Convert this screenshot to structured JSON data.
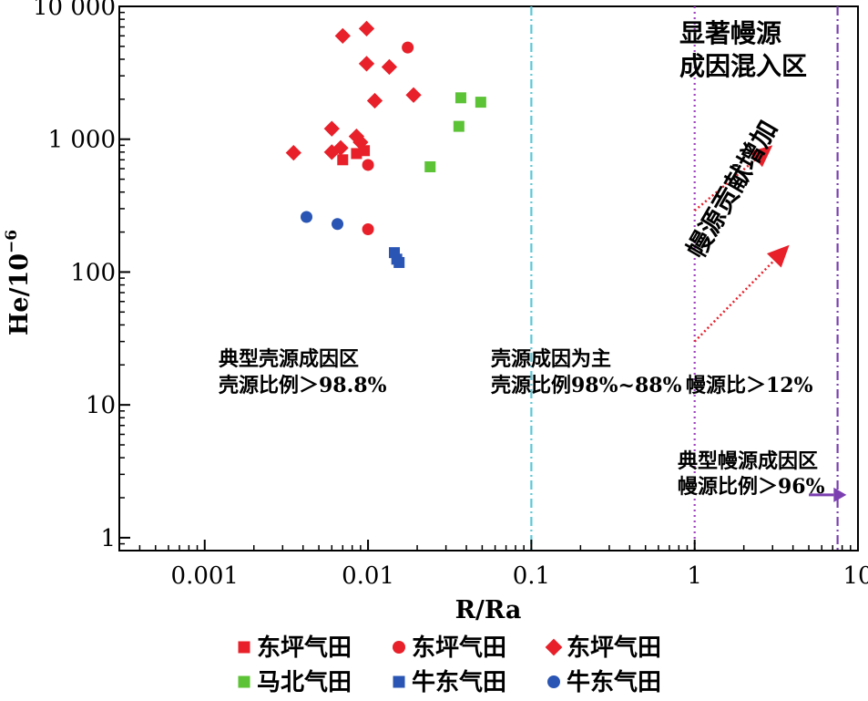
{
  "chart_data": {
    "type": "scatter",
    "xlabel": "R/Ra",
    "ylabel_base": "He/10",
    "ylabel_exp": "−6",
    "xscale": "log",
    "yscale": "log",
    "xlim": [
      0.0003,
      10
    ],
    "ylim": [
      0.8,
      10000
    ],
    "x_ticks": [
      {
        "value": 0.001,
        "label": "0.001"
      },
      {
        "value": 0.01,
        "label": "0.01"
      },
      {
        "value": 0.1,
        "label": "0.1"
      },
      {
        "value": 1,
        "label": "1"
      },
      {
        "value": 10,
        "label": "10"
      }
    ],
    "y_ticks": [
      {
        "value": 1,
        "label": "1"
      },
      {
        "value": 10,
        "label": "10"
      },
      {
        "value": 100,
        "label": "100"
      },
      {
        "value": 1000,
        "label": "1 000"
      },
      {
        "value": 10000,
        "label": "10 000"
      }
    ],
    "reference_lines": [
      {
        "x": 0.1,
        "color": "#5bc8d6",
        "style": "dashdot"
      },
      {
        "x": 1,
        "color": "#a040c0",
        "style": "dotted"
      },
      {
        "x": 7.5,
        "color": "#7b3fb0",
        "style": "dashdot"
      }
    ],
    "series": [
      {
        "name": "东坪气田",
        "marker": "square",
        "color": "#e8202a",
        "points": [
          [
            0.007,
            700
          ],
          [
            0.0085,
            780
          ],
          [
            0.0095,
            820
          ]
        ]
      },
      {
        "name": "东坪气田",
        "marker": "circle",
        "color": "#e8202a",
        "points": [
          [
            0.0175,
            4900
          ],
          [
            0.01,
            640
          ],
          [
            0.01,
            210
          ]
        ]
      },
      {
        "name": "东坪气田",
        "marker": "diamond",
        "color": "#e8202a",
        "points": [
          [
            0.007,
            6000
          ],
          [
            0.0098,
            6800
          ],
          [
            0.0098,
            3700
          ],
          [
            0.0135,
            3500
          ],
          [
            0.011,
            1950
          ],
          [
            0.019,
            2150
          ],
          [
            0.006,
            1200
          ],
          [
            0.0085,
            1050
          ],
          [
            0.0068,
            860
          ],
          [
            0.006,
            800
          ],
          [
            0.0035,
            790
          ],
          [
            0.009,
            950
          ]
        ]
      },
      {
        "name": "马北气田",
        "marker": "square",
        "color": "#5cc236",
        "points": [
          [
            0.037,
            2050
          ],
          [
            0.049,
            1900
          ],
          [
            0.036,
            1250
          ],
          [
            0.024,
            620
          ]
        ]
      },
      {
        "name": "牛东气田",
        "marker": "square",
        "color": "#2a55b5",
        "points": [
          [
            0.0145,
            140
          ],
          [
            0.015,
            125
          ],
          [
            0.0155,
            118
          ]
        ]
      },
      {
        "name": "牛东气田",
        "marker": "circle",
        "color": "#2a55b5",
        "points": [
          [
            0.0042,
            260
          ],
          [
            0.0065,
            230
          ]
        ]
      }
    ],
    "arrows": [
      {
        "from": [
          1.0,
          290
        ],
        "to": [
          3.0,
          900
        ],
        "color": "#e8202a"
      },
      {
        "from": [
          1.0,
          30
        ],
        "to": [
          3.8,
          160
        ],
        "color": "#e8202a"
      },
      {
        "from": [
          5.0,
          2.1
        ],
        "to": [
          8.5,
          2.1
        ],
        "color": "#7b3fb0"
      }
    ]
  },
  "annotations": {
    "zone1_line1": "典型壳源成因区",
    "zone1_line2": "壳源比例＞98.8%",
    "zone2_line1": "壳源成因为主",
    "zone2_line2": "壳源比例98%~88%",
    "zone3": "幔源比＞12%",
    "zone4_line1": "典型幔源成因区",
    "zone4_line2": "幔源比例＞96%",
    "zone5_line1": "显著幔源",
    "zone5_line2": "成因混入区",
    "trend": "幔源贡献增加"
  },
  "legend": [
    {
      "label": "东坪气田",
      "marker": "square",
      "color": "#e8202a"
    },
    {
      "label": "东坪气田",
      "marker": "circle",
      "color": "#e8202a"
    },
    {
      "label": "东坪气田",
      "marker": "diamond",
      "color": "#e8202a"
    },
    {
      "label": "马北气田",
      "marker": "square",
      "color": "#5cc236"
    },
    {
      "label": "牛东气田",
      "marker": "square",
      "color": "#2a55b5"
    },
    {
      "label": "牛东气田",
      "marker": "circle",
      "color": "#2a55b5"
    }
  ]
}
